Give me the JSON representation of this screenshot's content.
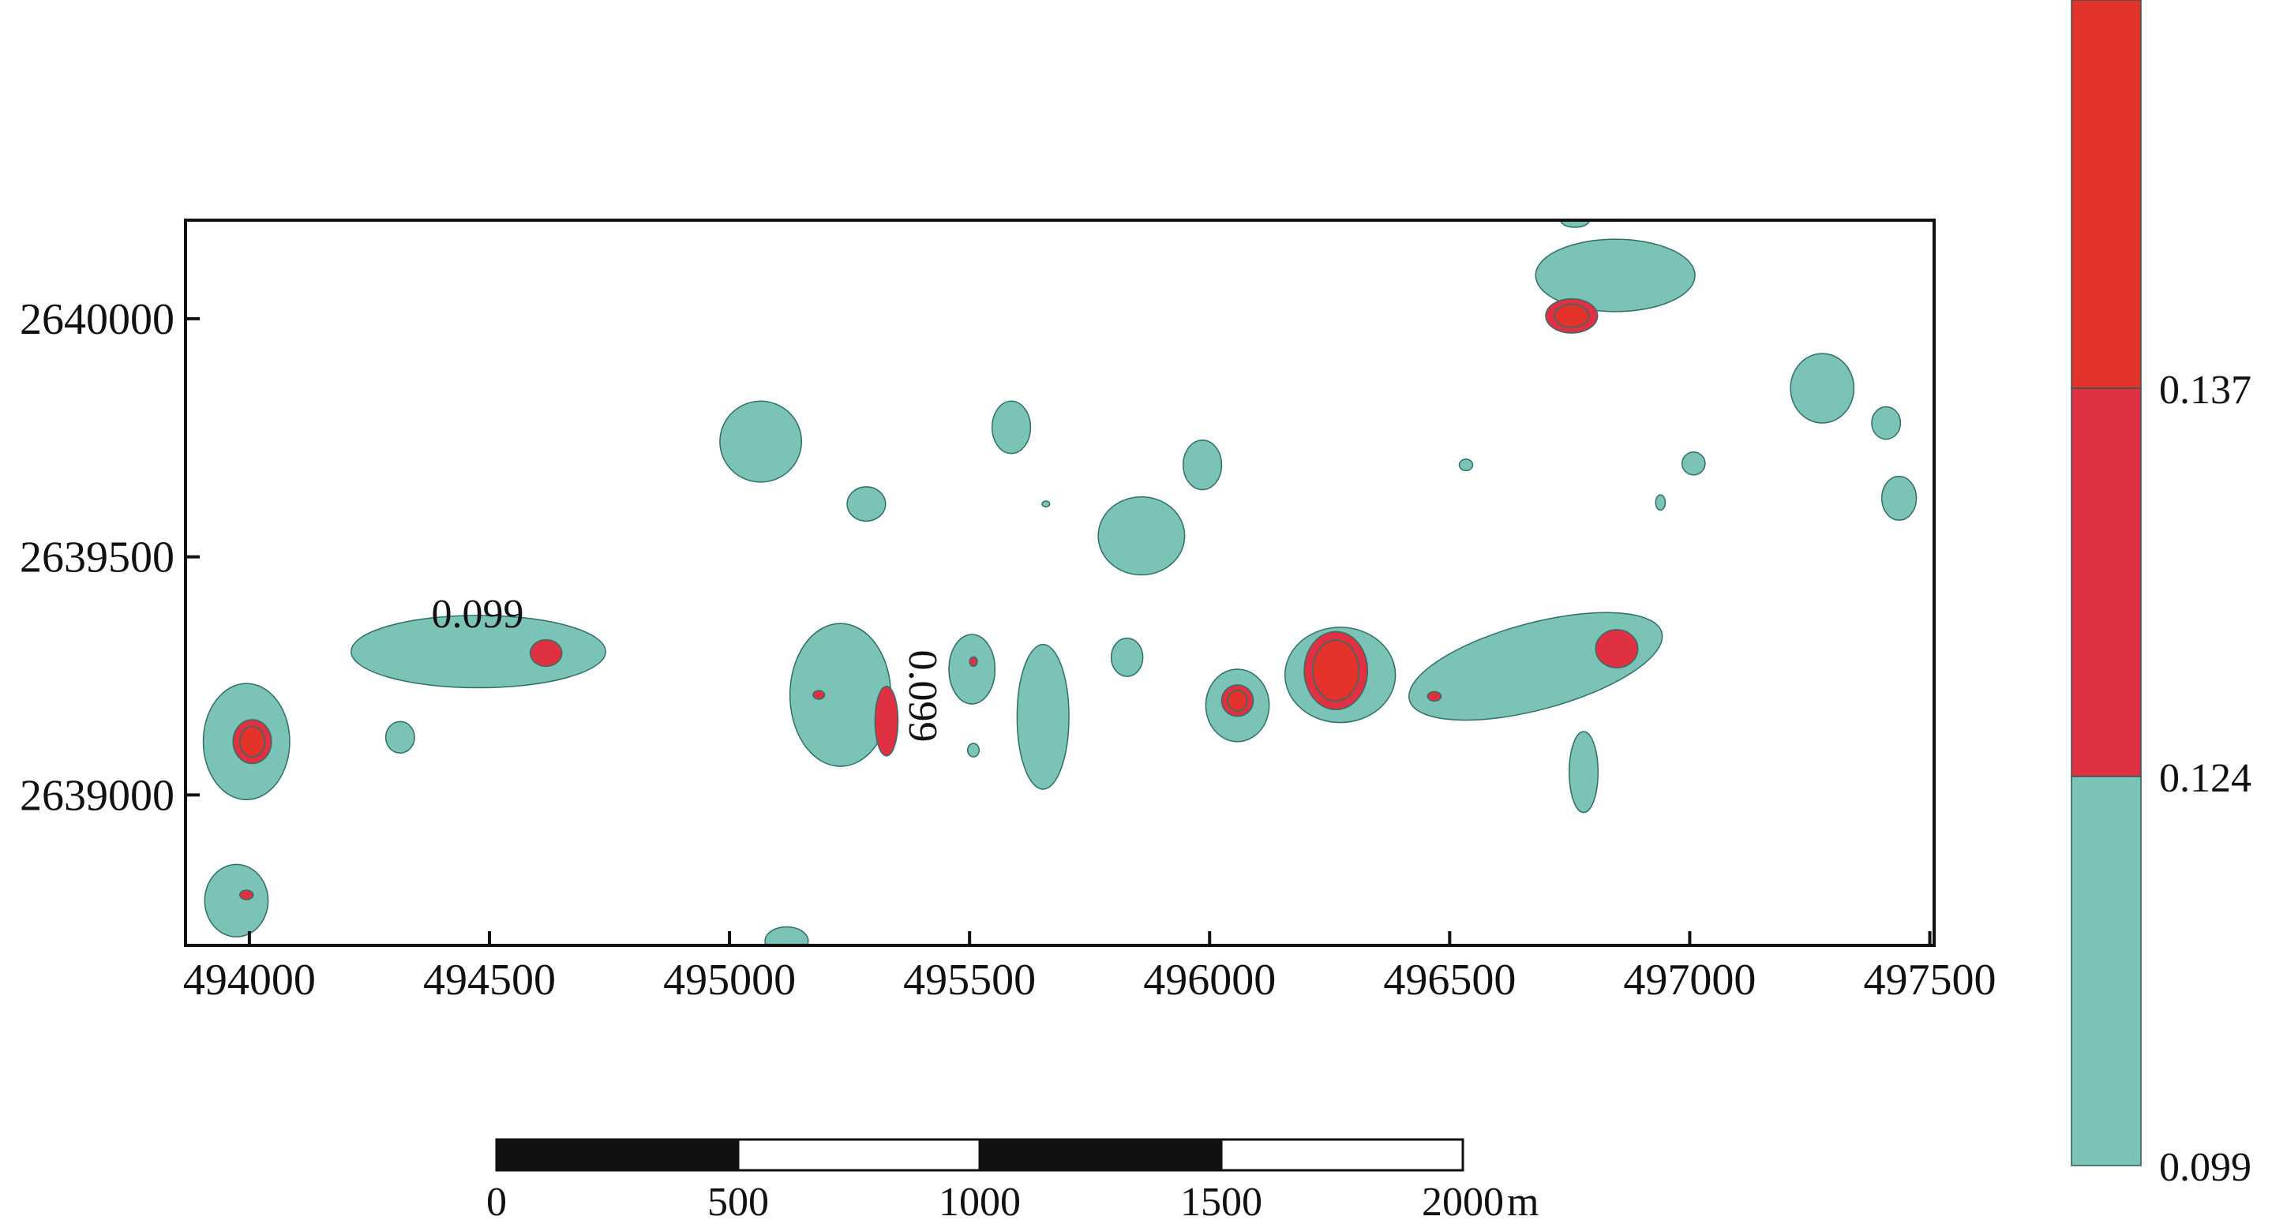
{
  "chart_data": {
    "type": "contour",
    "title": "",
    "xlabel": "",
    "ylabel": "",
    "xlim": [
      493867,
      497509
    ],
    "ylim": [
      2638684,
      2640207
    ],
    "x_ticks": [
      "494000",
      "494500",
      "495000",
      "495500",
      "496000",
      "496500",
      "497000",
      "497500"
    ],
    "x_tick_values": [
      494000,
      494500,
      495000,
      495500,
      496000,
      496500,
      497000,
      497500
    ],
    "y_ticks": [
      "2639000",
      "2639500",
      "2640000"
    ],
    "y_tick_values": [
      2639000,
      2639500,
      2640000
    ],
    "grid": false,
    "levels": [
      0.099,
      0.124,
      0.137
    ],
    "level_labels": [
      "0.099",
      "0.124",
      "0.137"
    ],
    "colors": {
      "low": "#7bc2b7",
      "mid": "#e03142",
      "high": "#e3332a",
      "outline": "#2f6f68"
    },
    "contour_labels": [
      "0.099",
      "0.099"
    ],
    "regions": [
      {
        "x": 493994,
        "y": 2639112,
        "rx": 90,
        "ry": 122,
        "level": "low"
      },
      {
        "x": 494006,
        "y": 2639112,
        "rx": 40,
        "ry": 46,
        "level": "mid"
      },
      {
        "x": 494006,
        "y": 2639112,
        "rx": 26,
        "ry": 32,
        "level": "high"
      },
      {
        "x": 493973,
        "y": 2638778,
        "rx": 66,
        "ry": 76,
        "level": "low"
      },
      {
        "x": 493994,
        "y": 2638790,
        "rx": 14,
        "ry": 10,
        "level": "mid"
      },
      {
        "x": 494477,
        "y": 2639301,
        "rx": 265,
        "ry": 76,
        "level": "low"
      },
      {
        "x": 494618,
        "y": 2639298,
        "rx": 33,
        "ry": 28,
        "level": "mid"
      },
      {
        "x": 494314,
        "y": 2639121,
        "rx": 30,
        "ry": 33,
        "level": "low"
      },
      {
        "x": 495065,
        "y": 2639742,
        "rx": 85,
        "ry": 85,
        "level": "low"
      },
      {
        "x": 495285,
        "y": 2639611,
        "rx": 40,
        "ry": 36,
        "level": "low"
      },
      {
        "x": 495587,
        "y": 2639772,
        "rx": 40,
        "ry": 55,
        "level": "low"
      },
      {
        "x": 495659,
        "y": 2639611,
        "rx": 8,
        "ry": 6,
        "level": "low"
      },
      {
        "x": 495858,
        "y": 2639544,
        "rx": 90,
        "ry": 82,
        "level": "low"
      },
      {
        "x": 495985,
        "y": 2639693,
        "rx": 40,
        "ry": 52,
        "level": "low"
      },
      {
        "x": 495231,
        "y": 2639210,
        "rx": 105,
        "ry": 150,
        "level": "low"
      },
      {
        "x": 495327,
        "y": 2639155,
        "rx": 24,
        "ry": 73,
        "level": "mid"
      },
      {
        "x": 495186,
        "y": 2639210,
        "rx": 12,
        "ry": 9,
        "level": "mid"
      },
      {
        "x": 495505,
        "y": 2639264,
        "rx": 48,
        "ry": 73,
        "level": "low"
      },
      {
        "x": 495508,
        "y": 2639280,
        "rx": 8,
        "ry": 10,
        "level": "mid"
      },
      {
        "x": 495508,
        "y": 2639094,
        "rx": 12,
        "ry": 14,
        "level": "low"
      },
      {
        "x": 495653,
        "y": 2639164,
        "rx": 54,
        "ry": 152,
        "level": "low"
      },
      {
        "x": 495828,
        "y": 2639289,
        "rx": 33,
        "ry": 40,
        "level": "low"
      },
      {
        "x": 496058,
        "y": 2639188,
        "rx": 66,
        "ry": 76,
        "level": "low"
      },
      {
        "x": 496058,
        "y": 2639198,
        "rx": 33,
        "ry": 33,
        "level": "mid"
      },
      {
        "x": 496058,
        "y": 2639198,
        "rx": 20,
        "ry": 22,
        "level": "high"
      },
      {
        "x": 496272,
        "y": 2639252,
        "rx": 115,
        "ry": 100,
        "level": "low"
      },
      {
        "x": 496263,
        "y": 2639261,
        "rx": 66,
        "ry": 82,
        "level": "mid"
      },
      {
        "x": 496263,
        "y": 2639261,
        "rx": 48,
        "ry": 64,
        "level": "high"
      },
      {
        "x": 496679,
        "y": 2639270,
        "rx": 272,
        "ry": 91,
        "level": "low",
        "rot": -15
      },
      {
        "x": 496848,
        "y": 2639307,
        "rx": 44,
        "ry": 40,
        "level": "mid"
      },
      {
        "x": 496468,
        "y": 2639207,
        "rx": 14,
        "ry": 10,
        "level": "mid"
      },
      {
        "x": 496779,
        "y": 2639048,
        "rx": 30,
        "ry": 85,
        "level": "low"
      },
      {
        "x": 496845,
        "y": 2640091,
        "rx": 166,
        "ry": 76,
        "level": "low"
      },
      {
        "x": 496754,
        "y": 2640006,
        "rx": 54,
        "ry": 36,
        "level": "mid"
      },
      {
        "x": 496754,
        "y": 2640006,
        "rx": 36,
        "ry": 24,
        "level": "high"
      },
      {
        "x": 496761,
        "y": 2640207,
        "rx": 30,
        "ry": 15,
        "level": "low"
      },
      {
        "x": 497276,
        "y": 2639854,
        "rx": 66,
        "ry": 73,
        "level": "low"
      },
      {
        "x": 497409,
        "y": 2639781,
        "rx": 30,
        "ry": 34,
        "level": "low"
      },
      {
        "x": 497436,
        "y": 2639623,
        "rx": 36,
        "ry": 46,
        "level": "low"
      },
      {
        "x": 497008,
        "y": 2639696,
        "rx": 24,
        "ry": 24,
        "level": "low"
      },
      {
        "x": 496939,
        "y": 2639614,
        "rx": 10,
        "ry": 16,
        "level": "low"
      },
      {
        "x": 496534,
        "y": 2639693,
        "rx": 14,
        "ry": 12,
        "level": "low"
      },
      {
        "x": 495119,
        "y": 2638693,
        "rx": 45,
        "ry": 30,
        "level": "low"
      }
    ],
    "scale_bar": {
      "labels": [
        "0",
        "500",
        "1000",
        "1500",
        "2000"
      ],
      "unit": "m"
    }
  }
}
